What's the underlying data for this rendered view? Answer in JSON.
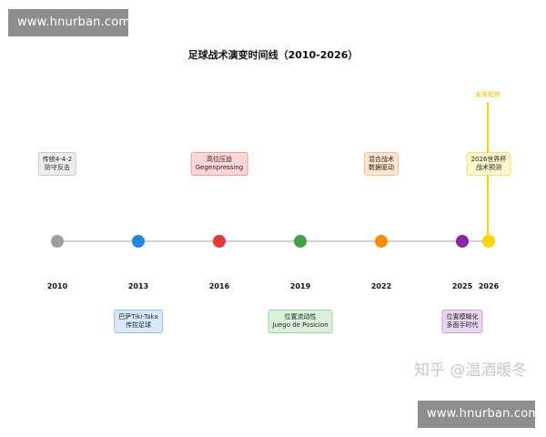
{
  "watermark_top": "www.hnurban.com",
  "watermark_bottom": "www.hnurban.com",
  "zhihu_watermark": "知乎 @温酒暖冬",
  "title": "足球战术演变时间线（2010-2026）",
  "future_label": "未来趋势",
  "colors": {
    "axis": "#cfcfcf",
    "future": "#f2d400"
  },
  "events": [
    {
      "year": "2010",
      "color": "#9e9e9e",
      "label": [
        "传统4-4-2",
        "防守反击"
      ],
      "position": "above",
      "box_bg": "#eeeeee",
      "box_border": "#c8c8c8"
    },
    {
      "year": "2013",
      "color": "#1e88e5",
      "label": [
        "巴萨Tiki-Taka",
        "传控足球"
      ],
      "position": "below",
      "box_bg": "#d7e9fb",
      "box_border": "#90c0ee"
    },
    {
      "year": "2016",
      "color": "#e53935",
      "label": [
        "高位压迫",
        "Gegenpressing"
      ],
      "position": "above",
      "box_bg": "#fbd6d5",
      "box_border": "#ee9c9a"
    },
    {
      "year": "2019",
      "color": "#43a047",
      "label": [
        "位置流动性",
        "Juego de Posicion"
      ],
      "position": "below",
      "box_bg": "#d9f0da",
      "box_border": "#9ed3a0"
    },
    {
      "year": "2022",
      "color": "#fb8c00",
      "label": [
        "混合战术",
        "数据驱动"
      ],
      "position": "above",
      "box_bg": "#fde6cc",
      "box_border": "#f6c48a"
    },
    {
      "year": "2025",
      "color": "#8e24aa",
      "label": [
        "位置模糊化",
        "多面手时代"
      ],
      "position": "below",
      "box_bg": "#ead6f1",
      "box_border": "#c99ad8"
    },
    {
      "year": "2026",
      "color": "#fbd500",
      "label": [
        "2026世界杯",
        "战术预测"
      ],
      "position": "above",
      "box_bg": "#fff7cc",
      "box_border": "#f0dc70"
    }
  ]
}
